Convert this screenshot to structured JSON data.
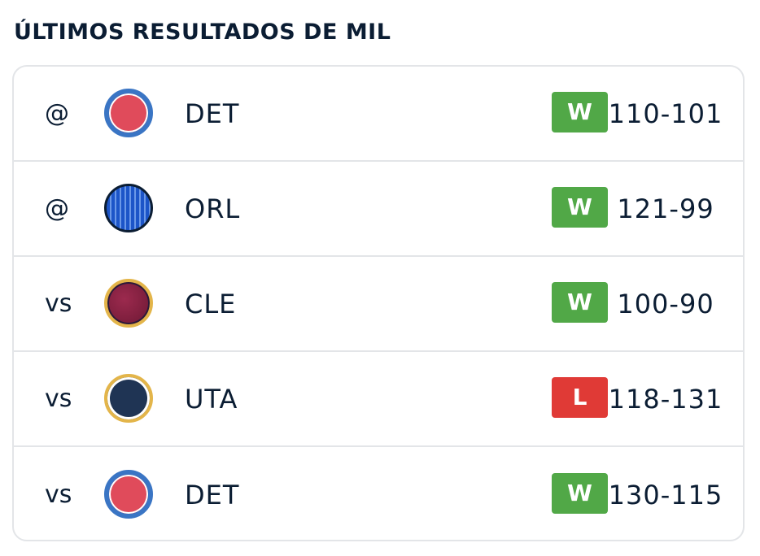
{
  "header": {
    "title": "ÚLTIMOS RESULTADOS DE MIL"
  },
  "colors": {
    "win": "#51a847",
    "loss": "#e03a36",
    "text": "#0b1d33",
    "divider": "#e3e5e8"
  },
  "games": [
    {
      "location": "@",
      "team": "DET",
      "logo_icon": "pistons-logo-icon",
      "result": "W",
      "score": "110-101"
    },
    {
      "location": "@",
      "team": "ORL",
      "logo_icon": "magic-logo-icon",
      "result": "W",
      "score": "121-99"
    },
    {
      "location": "vs",
      "team": "CLE",
      "logo_icon": "cavaliers-logo-icon",
      "result": "W",
      "score": "100-90"
    },
    {
      "location": "vs",
      "team": "UTA",
      "logo_icon": "jazz-logo-icon",
      "result": "L",
      "score": "118-131"
    },
    {
      "location": "vs",
      "team": "DET",
      "logo_icon": "pistons-logo-icon",
      "result": "W",
      "score": "130-115"
    }
  ]
}
